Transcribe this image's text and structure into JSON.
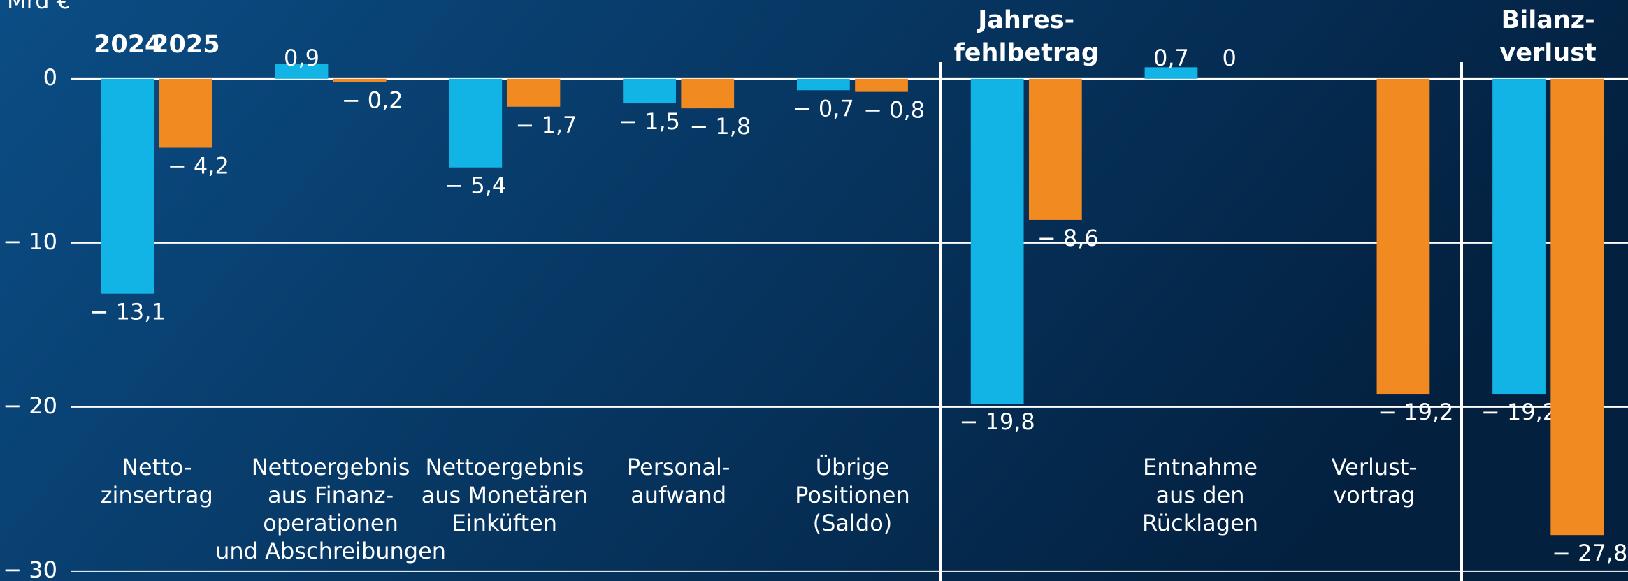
{
  "chart_data": {
    "type": "bar",
    "y_label": "Mrd €",
    "categories": [
      [
        "Netto-",
        "zinsertrag"
      ],
      [
        "Nettoergebnis",
        "aus Finanz-",
        "operationen",
        "und Abschreibungen"
      ],
      [
        "Nettoergebnis",
        "aus Monetären",
        "Einküften"
      ],
      [
        "Personal-",
        "aufwand"
      ],
      [
        "Übrige",
        "Positionen",
        "(Saldo)"
      ],
      [
        "Jahres-",
        "fehlbetrag"
      ],
      [
        "Entnahme",
        "aus den",
        "Rücklagen"
      ],
      [
        "Verlust-",
        "vortrag"
      ],
      [
        "Bilanz-",
        "verlust"
      ]
    ],
    "series": [
      {
        "name": "2024",
        "color": "#12b4e6",
        "values": [
          -13.1,
          0.9,
          -5.4,
          -1.5,
          -0.7,
          -19.8,
          0.7,
          0,
          -19.2
        ],
        "value_labels": [
          "− 13,1",
          "0,9",
          "− 5,4",
          "− 1,5",
          "− 0,7",
          "− 19,8",
          "0,7",
          null,
          "− 19,2"
        ]
      },
      {
        "name": "2025",
        "color": "#f18a21",
        "values": [
          -4.2,
          -0.2,
          -1.7,
          -1.8,
          -0.8,
          -8.6,
          0,
          -19.2,
          -27.8
        ],
        "value_labels": [
          "− 4,2",
          "− 0,2",
          "− 1,7",
          "− 1,8",
          "− 0,8",
          "− 8,6",
          "0",
          "− 19,2",
          "− 27,8"
        ]
      }
    ],
    "ylim": [
      -30.6,
      4.8
    ],
    "yticks": [
      0,
      {
        "value": -10,
        "label": "− 10"
      },
      {
        "value": -20,
        "label": "− 20"
      },
      {
        "value": -30,
        "label": "− 30"
      }
    ],
    "grid": true
  }
}
